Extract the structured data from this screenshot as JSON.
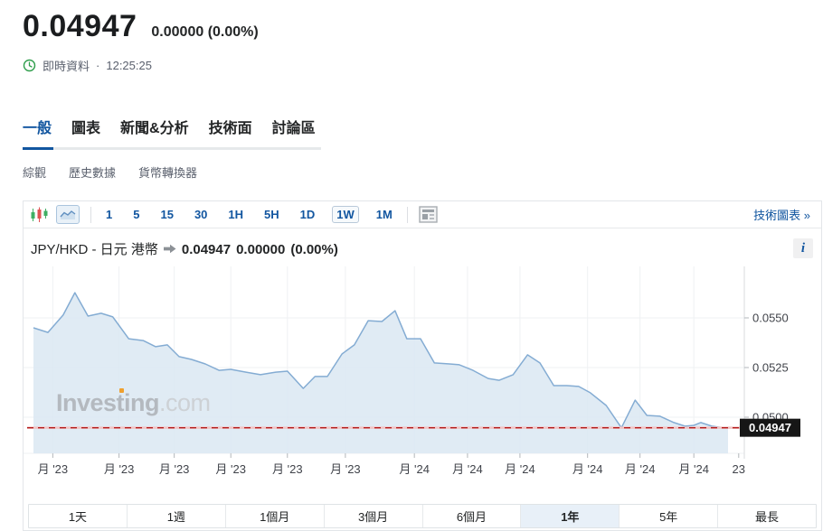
{
  "header": {
    "price": "0.04947",
    "change": "0.00000",
    "change_pct": "(0.00%)",
    "status_label": "即時資料",
    "separator": "·",
    "time": "12:25:25"
  },
  "tabs": {
    "items": [
      {
        "label": "一般",
        "active": true
      },
      {
        "label": "圖表",
        "active": false
      },
      {
        "label": "新聞&分析",
        "active": false
      },
      {
        "label": "技術面",
        "active": false
      },
      {
        "label": "討論區",
        "active": false
      }
    ]
  },
  "subnav": {
    "items": [
      {
        "label": "綜觀"
      },
      {
        "label": "歷史數據"
      },
      {
        "label": "貨幣轉換器"
      }
    ]
  },
  "toolbar": {
    "icons": [
      "candlestick-chart-icon",
      "area-chart-icon",
      "news-layout-icon"
    ],
    "intervals": [
      {
        "label": "1"
      },
      {
        "label": "5"
      },
      {
        "label": "15"
      },
      {
        "label": "30"
      },
      {
        "label": "1H"
      },
      {
        "label": "5H"
      },
      {
        "label": "1D"
      },
      {
        "label": "1W",
        "active": true
      },
      {
        "label": "1M"
      }
    ],
    "tech_chart_link": "技術圖表 »"
  },
  "chart_header": {
    "instrument": "JPY/HKD - 日元 港幣",
    "price": "0.04947",
    "change": "0.00000",
    "change_pct": "(0.00%)",
    "info_icon": "i"
  },
  "watermark": {
    "text_bold": "Investing",
    "text_light": ".com"
  },
  "colors": {
    "accent_blue": "#1256a0",
    "area_fill": "#dbe7f2",
    "line": "#84acd3",
    "red_dashed": "#b31b1b",
    "badge_bg": "#161616",
    "clock_green": "#2f9e4c",
    "gray_text": "#5b616e"
  },
  "chart_data": {
    "type": "area",
    "instrument": "JPY/HKD",
    "interval": "1W",
    "range": "1年",
    "grid": true,
    "ylim": [
      0.048,
      0.0576
    ],
    "y_axis": {
      "ticks": [
        {
          "value": 0.055,
          "label": "0.0550"
        },
        {
          "value": 0.0525,
          "label": "0.0525"
        },
        {
          "value": 0.05,
          "label": "0.0500"
        }
      ],
      "current": {
        "value": 0.04947,
        "label": "0.04947"
      }
    },
    "x_ticks": [
      {
        "t": 0.028,
        "label": "月 '23"
      },
      {
        "t": 0.124,
        "label": "月 '23"
      },
      {
        "t": 0.204,
        "label": "月 '23"
      },
      {
        "t": 0.286,
        "label": "月 '23"
      },
      {
        "t": 0.368,
        "label": "月 '23"
      },
      {
        "t": 0.452,
        "label": "月 '23"
      },
      {
        "t": 0.552,
        "label": "月 '24"
      },
      {
        "t": 0.629,
        "label": "月 '24"
      },
      {
        "t": 0.705,
        "label": "月 '24"
      },
      {
        "t": 0.803,
        "label": "月 '24"
      },
      {
        "t": 0.879,
        "label": "月 '24"
      },
      {
        "t": 0.957,
        "label": "月 '24"
      },
      {
        "t": 1.022,
        "label": "23"
      }
    ],
    "points": [
      [
        0.0,
        0.0545
      ],
      [
        0.021,
        0.05427
      ],
      [
        0.043,
        0.05514
      ],
      [
        0.06,
        0.05627
      ],
      [
        0.079,
        0.05509
      ],
      [
        0.098,
        0.05523
      ],
      [
        0.115,
        0.05505
      ],
      [
        0.138,
        0.05395
      ],
      [
        0.159,
        0.05386
      ],
      [
        0.177,
        0.05355
      ],
      [
        0.194,
        0.05364
      ],
      [
        0.211,
        0.05305
      ],
      [
        0.229,
        0.05291
      ],
      [
        0.249,
        0.05268
      ],
      [
        0.269,
        0.05236
      ],
      [
        0.286,
        0.05241
      ],
      [
        0.308,
        0.05227
      ],
      [
        0.329,
        0.05214
      ],
      [
        0.351,
        0.05227
      ],
      [
        0.368,
        0.05232
      ],
      [
        0.391,
        0.05145
      ],
      [
        0.408,
        0.05205
      ],
      [
        0.426,
        0.05205
      ],
      [
        0.447,
        0.05318
      ],
      [
        0.465,
        0.05364
      ],
      [
        0.485,
        0.05486
      ],
      [
        0.505,
        0.05482
      ],
      [
        0.524,
        0.05536
      ],
      [
        0.541,
        0.05395
      ],
      [
        0.561,
        0.05395
      ],
      [
        0.581,
        0.05273
      ],
      [
        0.603,
        0.05268
      ],
      [
        0.617,
        0.05264
      ],
      [
        0.637,
        0.05236
      ],
      [
        0.659,
        0.05195
      ],
      [
        0.675,
        0.05186
      ],
      [
        0.695,
        0.05214
      ],
      [
        0.716,
        0.05314
      ],
      [
        0.734,
        0.05273
      ],
      [
        0.754,
        0.05159
      ],
      [
        0.773,
        0.05159
      ],
      [
        0.79,
        0.05155
      ],
      [
        0.807,
        0.05123
      ],
      [
        0.83,
        0.05059
      ],
      [
        0.852,
        0.04947
      ],
      [
        0.872,
        0.05086
      ],
      [
        0.889,
        0.05009
      ],
      [
        0.908,
        0.05005
      ],
      [
        0.928,
        0.04973
      ],
      [
        0.944,
        0.04955
      ],
      [
        0.957,
        0.04959
      ],
      [
        0.967,
        0.04973
      ],
      [
        0.983,
        0.04955
      ],
      [
        1.0,
        0.04947
      ]
    ]
  },
  "range_bar": {
    "items": [
      {
        "label": "1天",
        "active": false
      },
      {
        "label": "1週",
        "active": false
      },
      {
        "label": "1個月",
        "active": false
      },
      {
        "label": "3個月",
        "active": false
      },
      {
        "label": "6個月",
        "active": false
      },
      {
        "label": "1年",
        "active": true
      },
      {
        "label": "5年",
        "active": false
      },
      {
        "label": "最長",
        "active": false
      }
    ]
  }
}
